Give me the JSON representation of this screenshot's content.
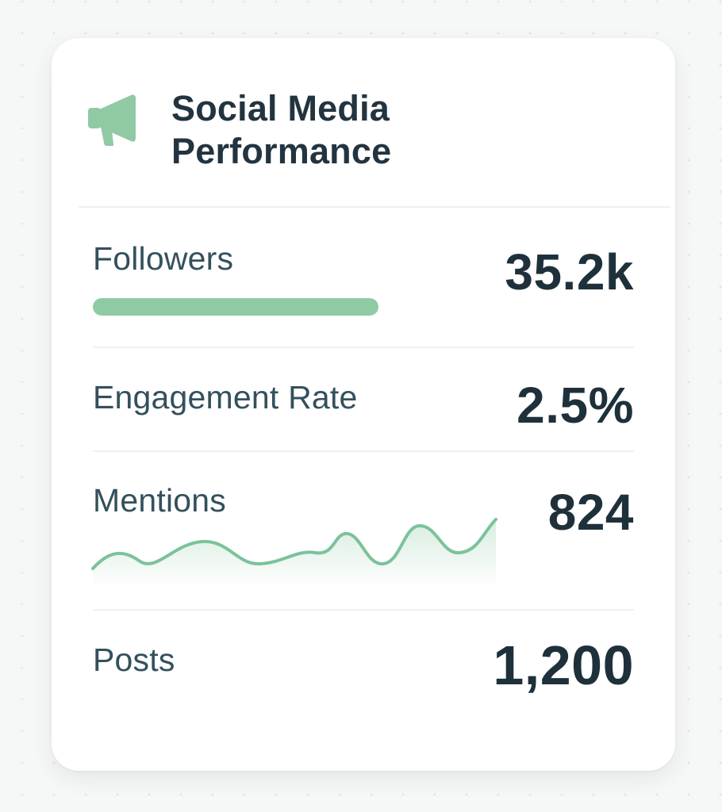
{
  "card": {
    "title_line1": "Social Media",
    "title_line2": "Performance",
    "icon": "megaphone-icon"
  },
  "metrics": {
    "followers": {
      "label": "Followers",
      "value": "35.2k",
      "bar_fill_percent": 100
    },
    "engagement": {
      "label": "Engagement Rate",
      "value": "2.5%"
    },
    "mentions": {
      "label": "Mentions",
      "value": "824",
      "trend_icon": "sparkline"
    },
    "posts": {
      "label": "Posts",
      "value": "1,200"
    }
  },
  "colors": {
    "accent_green": "#8fcaa5",
    "sparkline_stroke": "#7cc29a",
    "text_dark": "#1e313b",
    "text_label": "#34505d"
  }
}
